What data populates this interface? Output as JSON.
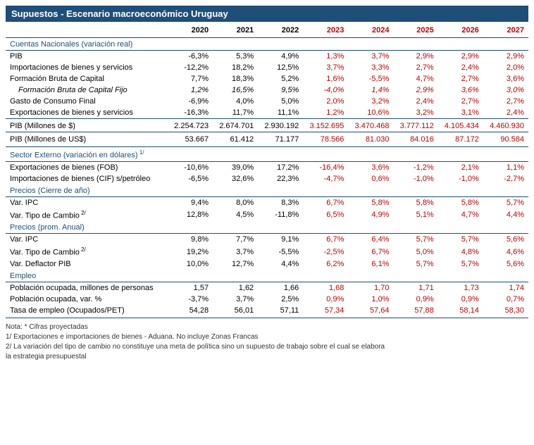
{
  "title": "Supuestos - Escenario macroeconómico Uruguay",
  "colors": {
    "header_bg": "#1f4e79",
    "header_text": "#ffffff",
    "section_text": "#1f4e79",
    "projected_text": "#c00000",
    "border": "#1f4e79"
  },
  "years": [
    "2020",
    "2021",
    "2022",
    "2023",
    "2024",
    "2025",
    "2026",
    "2027"
  ],
  "projected_from_index": 3,
  "sections": [
    {
      "label": "Cuentas Nacionales (variación real)",
      "rows": [
        {
          "label": "PIB",
          "v": [
            "-6,3%",
            "5,3%",
            "4,9%",
            "1,3%",
            "3,7%",
            "2,9%",
            "2,9%",
            "2,9%"
          ]
        },
        {
          "label": "Importaciones de bienes y servicios",
          "v": [
            "-12,2%",
            "18,2%",
            "12,5%",
            "3,7%",
            "3,3%",
            "2,7%",
            "2,4%",
            "2,0%"
          ]
        },
        {
          "label": "Formación Bruta de Capital",
          "v": [
            "7,7%",
            "18,3%",
            "5,2%",
            "1,6%",
            "-5,5%",
            "4,7%",
            "2,7%",
            "3,6%"
          ]
        },
        {
          "label": "Formación Bruta de Capital Fijo",
          "italic": true,
          "indent": true,
          "v": [
            "1,2%",
            "16,5%",
            "9,5%",
            "-4,0%",
            "1,4%",
            "2,9%",
            "3,6%",
            "3,0%"
          ]
        },
        {
          "label": "Gasto de Consumo Final",
          "v": [
            "-6,9%",
            "4,0%",
            "5,0%",
            "2,0%",
            "3,2%",
            "2,4%",
            "2,7%",
            "2,7%"
          ]
        },
        {
          "label": "Exportaciones de bienes y servicios",
          "v": [
            "-16,3%",
            "11,7%",
            "11,1%",
            "1,2%",
            "10,6%",
            "3,2%",
            "3,1%",
            "2,4%"
          ]
        },
        {
          "label": "PIB (Millones de $)",
          "bordertop": true,
          "v": [
            "2.254.723",
            "2.674.701",
            "2.930.192",
            "3.152.695",
            "3.470.468",
            "3.777.112",
            "4.105.434",
            "4.460.930"
          ]
        },
        {
          "label": "PIB (Millones de US$)",
          "bordertop": true,
          "borderbot": true,
          "v": [
            "53.667",
            "61.412",
            "71.177",
            "78.566",
            "81.030",
            "84.016",
            "87.172",
            "90.584"
          ]
        }
      ]
    },
    {
      "label": "Sector Externo (variación en dólares)",
      "sup": "1/",
      "rows": [
        {
          "label": "Exportaciones de bienes (FOB)",
          "v": [
            "-10,6%",
            "39,0%",
            "17,2%",
            "-16,4%",
            "3,6%",
            "-1,2%",
            "2,1%",
            "1,1%"
          ]
        },
        {
          "label": "Importaciones de bienes (CIF) s/petróleo",
          "v": [
            "-6,5%",
            "32,6%",
            "22,3%",
            "-4,7%",
            "0,6%",
            "-1,0%",
            "-1,0%",
            "-2,7%"
          ]
        }
      ]
    },
    {
      "label": "Precios (Cierre de año)",
      "rows": [
        {
          "label": "Var. IPC",
          "v": [
            "9,4%",
            "8,0%",
            "8,3%",
            "6,7%",
            "5,8%",
            "5,8%",
            "5,8%",
            "5,7%"
          ]
        },
        {
          "label": "Var. Tipo de Cambio",
          "sup": "2/",
          "v": [
            "12,8%",
            "4,5%",
            "-11,8%",
            "6,5%",
            "4,9%",
            "5,1%",
            "4,7%",
            "4,4%"
          ]
        }
      ]
    },
    {
      "label": "Precios (prom. Anual)",
      "rows": [
        {
          "label": "Var. IPC",
          "v": [
            "9,8%",
            "7,7%",
            "9,1%",
            "6,7%",
            "6,4%",
            "5,7%",
            "5,7%",
            "5,6%"
          ]
        },
        {
          "label": "Var. Tipo de Cambio",
          "sup": "2/",
          "v": [
            "19,2%",
            "3,7%",
            "-5,5%",
            "-2,5%",
            "6,7%",
            "5,0%",
            "4,8%",
            "4,6%"
          ]
        },
        {
          "label": "Var. Deflactor PIB",
          "v": [
            "10,0%",
            "12,7%",
            "4,4%",
            "6,2%",
            "6,1%",
            "5,7%",
            "5,7%",
            "5,6%"
          ]
        }
      ]
    },
    {
      "label": "Empleo",
      "rows": [
        {
          "label": "Población ocupada, millones de personas",
          "v": [
            "1,57",
            "1,62",
            "1,66",
            "1,68",
            "1,70",
            "1,71",
            "1,73",
            "1,74"
          ]
        },
        {
          "label": "Población ocupada, var. %",
          "v": [
            "-3,7%",
            "3,7%",
            "2,5%",
            "0,9%",
            "1,0%",
            "0,9%",
            "0,9%",
            "0,7%"
          ]
        },
        {
          "label": "Tasa de empleo (Ocupados/PET)",
          "borderbot": true,
          "v": [
            "54,28",
            "56,01",
            "57,11",
            "57,34",
            "57,64",
            "57,88",
            "58,14",
            "58,30"
          ]
        }
      ]
    }
  ],
  "notes": [
    "Nota: * Cifras proyectadas",
    "1/ Exportaciones e importaciones de bienes - Aduana. No incluye Zonas Francas",
    "2/ La variación del tipo de cambio no constituye una meta de política sino un supuesto de trabajo sobre el cual se elabora",
    "la estrategia presupuestal"
  ]
}
